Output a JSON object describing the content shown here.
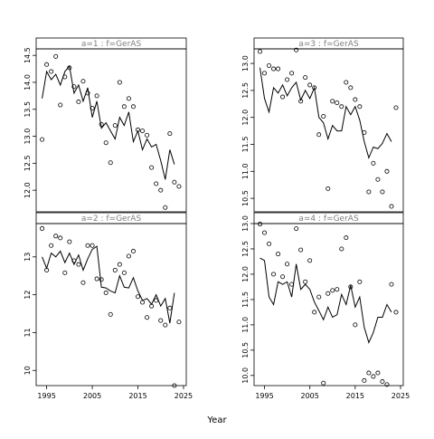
{
  "figure": {
    "xlabel": "Year"
  },
  "chart_data": [
    {
      "type": "scatter",
      "title": "a=1 : f=GerAS",
      "xlim": [
        1992.7,
        2025.6
      ],
      "ylim": [
        11.6,
        14.62
      ],
      "xticks": [
        1995,
        2005,
        2015,
        2025
      ],
      "yticks": [
        12.0,
        12.5,
        13.0,
        13.5,
        14.0,
        14.5
      ],
      "tick_decimals": 1,
      "series": [
        {
          "kind": "points",
          "x": [
            1994,
            1995,
            1996,
            1997,
            1998,
            1999,
            2000,
            2001,
            2002,
            2003,
            2004,
            2005,
            2006,
            2007,
            2008,
            2009,
            2010,
            2011,
            2012,
            2013,
            2014,
            2015,
            2016,
            2017,
            2018,
            2019,
            2020,
            2021,
            2022,
            2023,
            2024
          ],
          "y": [
            12.94,
            14.33,
            14.2,
            14.48,
            13.58,
            14.1,
            14.27,
            13.92,
            13.64,
            14.02,
            13.8,
            13.52,
            13.75,
            13.22,
            12.88,
            12.51,
            13.2,
            14.0,
            13.55,
            13.7,
            13.55,
            13.12,
            13.1,
            13.02,
            12.42,
            12.12,
            12.0,
            11.68,
            13.05,
            12.15,
            12.07
          ]
        },
        {
          "kind": "line",
          "x": [
            1994,
            1995,
            1996,
            1997,
            1998,
            1999,
            2000,
            2001,
            2002,
            2003,
            2004,
            2005,
            2006,
            2007,
            2008,
            2009,
            2010,
            2011,
            2012,
            2013,
            2014,
            2015,
            2016,
            2017,
            2018,
            2019,
            2020,
            2021,
            2022,
            2023
          ],
          "y": [
            13.7,
            14.2,
            14.05,
            14.15,
            13.95,
            14.2,
            14.3,
            13.8,
            13.95,
            13.65,
            13.9,
            13.35,
            13.65,
            13.15,
            13.25,
            13.1,
            12.95,
            13.35,
            13.2,
            13.45,
            12.9,
            13.1,
            12.75,
            12.95,
            12.8,
            12.85,
            12.55,
            12.2,
            12.75,
            12.48
          ]
        }
      ]
    },
    {
      "type": "scatter",
      "title": "a=3 : f=GerAS",
      "xlim": [
        1992.7,
        2025.6
      ],
      "ylim": [
        10.25,
        13.27
      ],
      "xticks": [
        1995,
        2005,
        2015,
        2025
      ],
      "yticks": [
        10.5,
        11.0,
        11.5,
        12.0,
        12.5,
        13.0
      ],
      "tick_decimals": 1,
      "series": [
        {
          "kind": "points",
          "x": [
            1994,
            1995,
            1996,
            1997,
            1998,
            1999,
            2000,
            2001,
            2002,
            2003,
            2004,
            2005,
            2006,
            2007,
            2008,
            2009,
            2010,
            2011,
            2012,
            2013,
            2014,
            2015,
            2016,
            2017,
            2018,
            2019,
            2020,
            2021,
            2022,
            2023,
            2024
          ],
          "y": [
            13.22,
            12.82,
            12.96,
            12.9,
            12.9,
            12.38,
            12.7,
            12.82,
            13.25,
            12.3,
            12.74,
            12.6,
            12.55,
            11.68,
            12.02,
            10.68,
            12.3,
            12.27,
            12.2,
            12.65,
            12.55,
            12.33,
            12.2,
            11.72,
            10.62,
            11.15,
            10.85,
            10.62,
            11.0,
            10.35,
            12.18
          ]
        },
        {
          "kind": "line",
          "x": [
            1994,
            1995,
            1996,
            1997,
            1998,
            1999,
            2000,
            2001,
            2002,
            2003,
            2004,
            2005,
            2006,
            2007,
            2008,
            2009,
            2010,
            2011,
            2012,
            2013,
            2014,
            2015,
            2016,
            2017,
            2018,
            2019,
            2020,
            2021,
            2022,
            2023
          ],
          "y": [
            12.92,
            12.35,
            12.1,
            12.55,
            12.45,
            12.6,
            12.4,
            12.55,
            12.65,
            12.32,
            12.5,
            12.35,
            12.55,
            12.0,
            11.9,
            11.6,
            11.85,
            11.75,
            11.75,
            12.2,
            12.05,
            12.2,
            11.95,
            11.55,
            11.25,
            11.45,
            11.42,
            11.52,
            11.7,
            11.55
          ]
        }
      ]
    },
    {
      "type": "scatter",
      "title": "a=2 : f=GerAS",
      "xlim": [
        1992.7,
        2025.6
      ],
      "ylim": [
        9.6,
        13.88
      ],
      "xticks": [
        1995,
        2005,
        2015,
        2025
      ],
      "yticks": [
        10,
        11,
        12,
        13
      ],
      "tick_decimals": 0,
      "series": [
        {
          "kind": "points",
          "x": [
            1994,
            1995,
            1996,
            1997,
            1998,
            1999,
            2000,
            2001,
            2002,
            2003,
            2004,
            2005,
            2006,
            2007,
            2008,
            2009,
            2010,
            2011,
            2012,
            2013,
            2014,
            2015,
            2016,
            2017,
            2018,
            2019,
            2020,
            2021,
            2022,
            2023,
            2024
          ],
          "y": [
            13.75,
            12.65,
            13.3,
            13.55,
            13.5,
            12.58,
            13.4,
            12.9,
            12.8,
            12.32,
            13.3,
            13.3,
            12.42,
            12.4,
            12.05,
            11.48,
            12.65,
            12.8,
            12.58,
            13.02,
            13.15,
            11.95,
            11.8,
            11.4,
            11.7,
            11.85,
            11.32,
            11.2,
            11.65,
            9.6,
            11.28
          ]
        },
        {
          "kind": "line",
          "x": [
            1994,
            1995,
            1996,
            1997,
            1998,
            1999,
            2000,
            2001,
            2002,
            2003,
            2004,
            2005,
            2006,
            2007,
            2008,
            2009,
            2010,
            2011,
            2012,
            2013,
            2014,
            2015,
            2016,
            2017,
            2018,
            2019,
            2020,
            2021,
            2022,
            2023
          ],
          "y": [
            13.0,
            12.7,
            13.1,
            13.0,
            13.15,
            12.85,
            13.1,
            12.8,
            13.05,
            12.65,
            12.95,
            13.2,
            13.28,
            12.2,
            12.18,
            12.1,
            12.05,
            12.5,
            12.2,
            12.18,
            12.45,
            12.1,
            11.85,
            11.9,
            11.75,
            12.0,
            11.7,
            11.9,
            11.25,
            12.05
          ]
        }
      ]
    },
    {
      "type": "scatter",
      "title": "a=4 : f=GerAS",
      "xlim": [
        1992.7,
        2025.6
      ],
      "ylim": [
        9.8,
        13.0
      ],
      "xticks": [
        1995,
        2005,
        2015,
        2025
      ],
      "yticks": [
        10.0,
        10.5,
        11.0,
        11.5,
        12.0,
        12.5,
        13.0
      ],
      "tick_decimals": 1,
      "series": [
        {
          "kind": "points",
          "x": [
            1994,
            1995,
            1996,
            1997,
            1998,
            1999,
            2000,
            2001,
            2002,
            2003,
            2004,
            2005,
            2006,
            2007,
            2008,
            2009,
            2010,
            2011,
            2012,
            2013,
            2014,
            2015,
            2016,
            2017,
            2018,
            2019,
            2020,
            2021,
            2022,
            2023,
            2024
          ],
          "y": [
            12.99,
            12.82,
            12.6,
            12.0,
            12.4,
            11.95,
            12.2,
            11.8,
            12.9,
            12.48,
            11.85,
            12.27,
            11.25,
            11.55,
            9.85,
            11.62,
            11.68,
            11.7,
            12.5,
            12.72,
            11.75,
            11.0,
            11.85,
            9.9,
            10.05,
            9.98,
            10.05,
            9.88,
            9.82,
            11.8,
            11.25
          ]
        },
        {
          "kind": "line",
          "x": [
            1994,
            1995,
            1996,
            1997,
            1998,
            1999,
            2000,
            2001,
            2002,
            2003,
            2004,
            2005,
            2006,
            2007,
            2008,
            2009,
            2010,
            2011,
            2012,
            2013,
            2014,
            2015,
            2016,
            2017,
            2018,
            2019,
            2020,
            2021,
            2022,
            2023
          ],
          "y": [
            12.32,
            12.27,
            11.55,
            11.4,
            11.85,
            11.8,
            11.85,
            11.55,
            12.2,
            11.7,
            11.8,
            11.7,
            11.45,
            11.28,
            11.1,
            11.35,
            11.15,
            11.2,
            11.6,
            11.4,
            11.78,
            11.35,
            11.55,
            10.95,
            10.65,
            10.85,
            11.15,
            11.15,
            11.4,
            11.25
          ]
        }
      ]
    }
  ]
}
